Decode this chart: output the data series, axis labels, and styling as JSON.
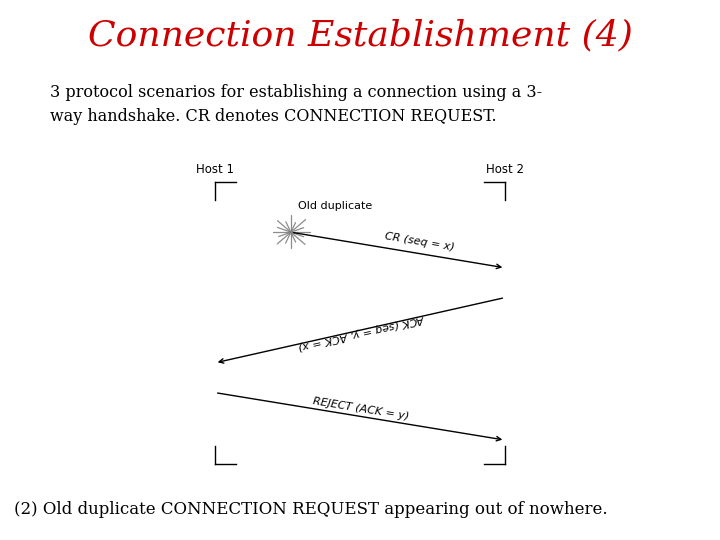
{
  "title": "Connection Establishment (4)",
  "title_color": "#cc0000",
  "title_fontsize": 26,
  "subtitle_line1": "3 protocol scenarios for establishing a connection using a 3-",
  "subtitle_line2": "way handshake. CR denotes CONNECTION REQUEST.",
  "subtitle_fontsize": 11.5,
  "caption": "(2) Old duplicate CONNECTION REQUEST appearing out of nowhere.",
  "caption_fontsize": 12,
  "bg_color": "#ffffff",
  "diagram": {
    "host1_label": "Host 1",
    "host2_label": "Host 2",
    "old_dup_label": "Old duplicate",
    "arrow1_label": "CR (seq = x)",
    "arrow2_label": "ACK (seq = y, ACK = x)",
    "arrow3_label": "REJECT (ACK = y)"
  }
}
